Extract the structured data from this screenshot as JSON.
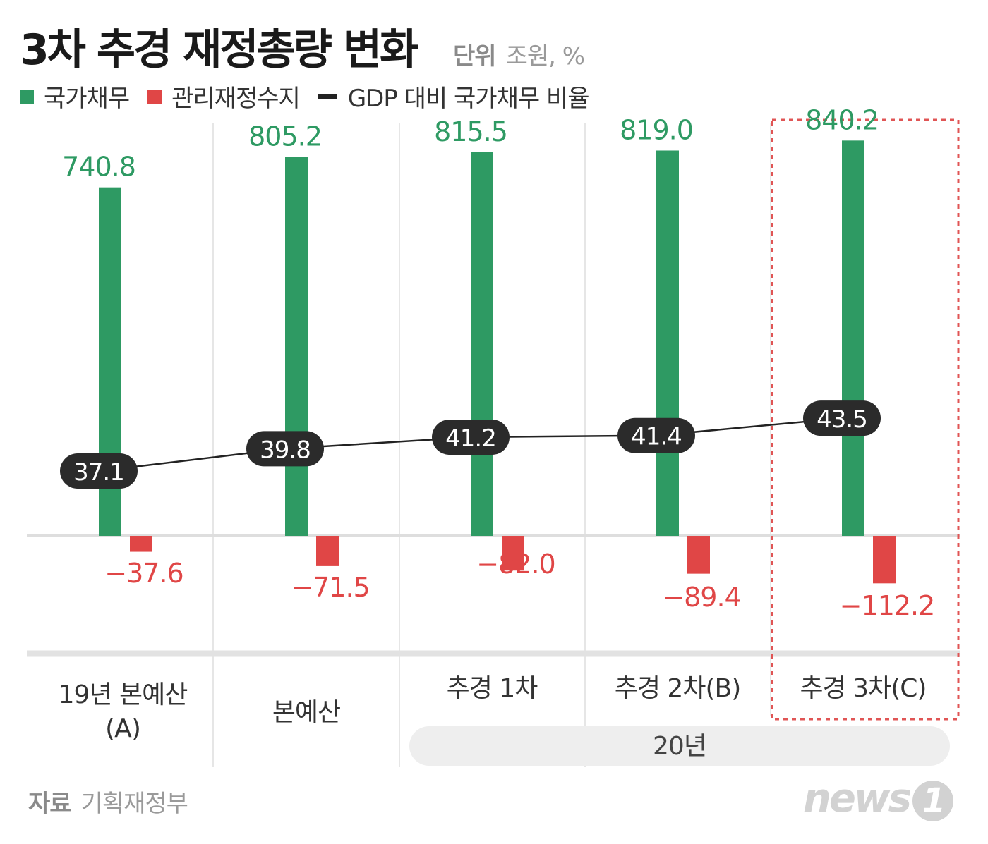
{
  "header": {
    "title": "3차 추경 재정총량 변화",
    "unit_label": "단위",
    "unit_value": "조원, %"
  },
  "legend": {
    "debt": "국가채무",
    "balance": "관리재정수지",
    "ratio": "GDP 대비 국가채무 비율"
  },
  "colors": {
    "debt": "#2e9a63",
    "balance": "#e04646",
    "ratio_pill": "#2b2b2b",
    "highlight_box": "#e05555"
  },
  "chart_data": {
    "type": "bar",
    "categories": [
      "19년 본예산 (A)",
      "본예산",
      "추경 1차",
      "추경 2차(B)",
      "추경 3차(C)"
    ],
    "series": [
      {
        "name": "국가채무",
        "values": [
          740.8,
          805.2,
          815.5,
          819.0,
          840.2
        ],
        "labels": [
          "740.8",
          "805.2",
          "815.5",
          "819.0",
          "840.2"
        ]
      },
      {
        "name": "관리재정수지",
        "values": [
          -37.6,
          -71.5,
          -82.0,
          -89.4,
          -112.2
        ],
        "labels": [
          "−37.6",
          "−71.5",
          "−82.0",
          "−89.4",
          "−112.2"
        ]
      },
      {
        "name": "GDP 대비 국가채무 비율",
        "type": "line",
        "values": [
          37.1,
          39.8,
          41.2,
          41.4,
          43.5
        ],
        "labels": [
          "37.1",
          "39.8",
          "41.2",
          "41.4",
          "43.5"
        ]
      }
    ],
    "category_lines": [
      [
        "19년 본예산",
        "(A)"
      ],
      [
        "본예산"
      ],
      [
        "추경 1차"
      ],
      [
        "추경 2차(B)"
      ],
      [
        "추경 3차(C)"
      ]
    ],
    "group_label": "20년",
    "highlighted_category": "추경 3차(C)"
  },
  "footer": {
    "source_label": "자료",
    "source_value": "기획재정부",
    "logo_text": "news",
    "logo_mark": "1"
  }
}
